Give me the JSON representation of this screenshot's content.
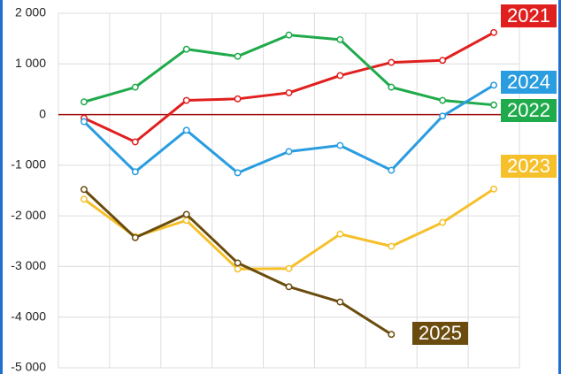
{
  "chart_data": {
    "type": "line",
    "categories": [
      null,
      null,
      null,
      null,
      null,
      null,
      null,
      null,
      null
    ],
    "series": [
      {
        "name": "2021",
        "color": "#e0201f",
        "values": [
          -70,
          -540,
          280,
          310,
          430,
          770,
          1030,
          1070,
          1620
        ]
      },
      {
        "name": "2022",
        "color": "#1faa4b",
        "values": [
          250,
          540,
          1290,
          1150,
          1570,
          1480,
          540,
          280,
          190
        ]
      },
      {
        "name": "2023",
        "color": "#f5c02a",
        "values": [
          -1670,
          -2410,
          -2090,
          -3050,
          -3040,
          -2360,
          -2600,
          -2130,
          -1470
        ]
      },
      {
        "name": "2024",
        "color": "#2a9de0",
        "values": [
          -140,
          -1130,
          -310,
          -1150,
          -730,
          -610,
          -1100,
          -30,
          580
        ]
      },
      {
        "name": "2025",
        "color": "#6b4c0e",
        "values": [
          -1480,
          -2430,
          -1970,
          -2930,
          -3400,
          -3700,
          -4340,
          null,
          null
        ]
      }
    ],
    "ylim": [
      -5000,
      2000
    ],
    "yticks": [
      {
        "value": 2000,
        "label": "2 000"
      },
      {
        "value": 1000,
        "label": "1 000"
      },
      0,
      {
        "value": -1000,
        "label": "-1 000"
      },
      {
        "value": -2000,
        "label": "-2 000"
      },
      {
        "value": -3000,
        "label": "-3 000"
      },
      {
        "value": -4000,
        "label": "-4 000"
      },
      {
        "value": -5000,
        "label": "-5 000"
      }
    ],
    "grid": true
  }
}
